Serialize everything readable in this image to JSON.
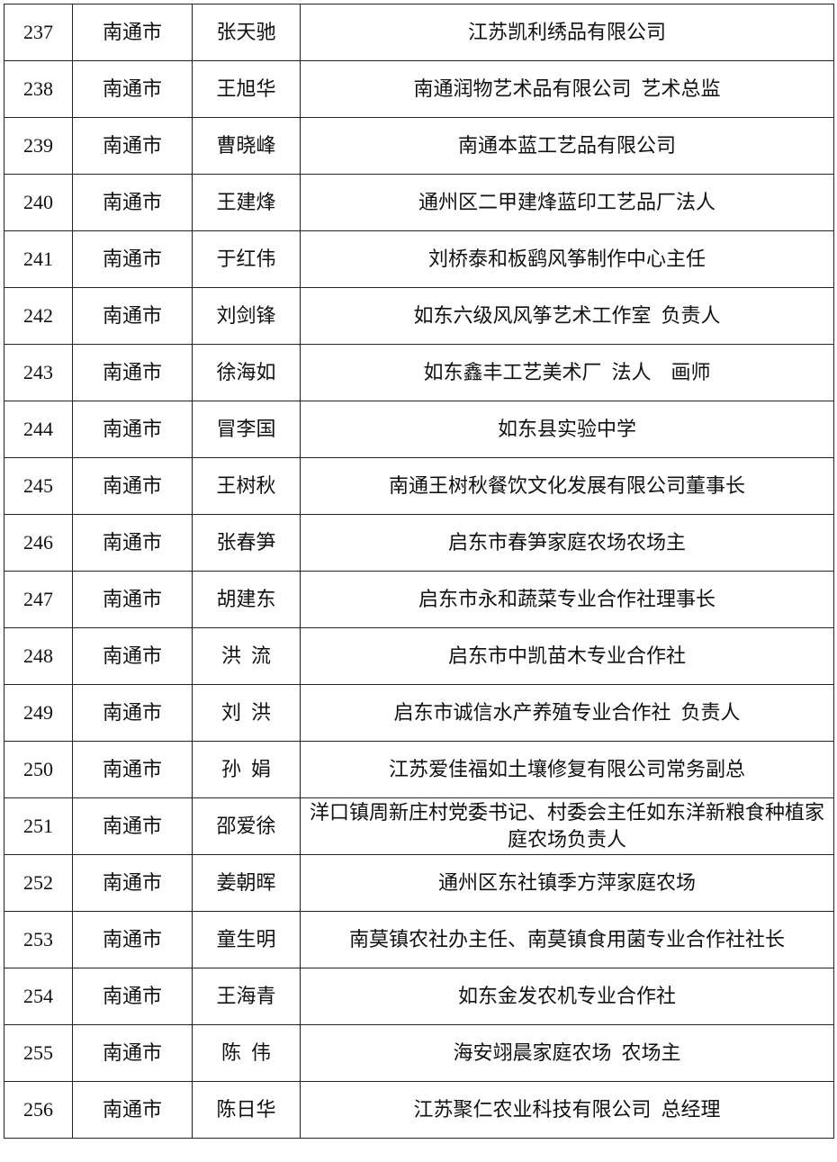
{
  "rows": [
    {
      "no": "237",
      "city": "南通市",
      "name": "张天驰",
      "unit": "江苏凯利绣品有限公司"
    },
    {
      "no": "238",
      "city": "南通市",
      "name": "王旭华",
      "unit": "南通润物艺术品有限公司  艺术总监"
    },
    {
      "no": "239",
      "city": "南通市",
      "name": "曹晓峰",
      "unit": "南通本蓝工艺品有限公司"
    },
    {
      "no": "240",
      "city": "南通市",
      "name": "王建烽",
      "unit": "通州区二甲建烽蓝印工艺品厂法人"
    },
    {
      "no": "241",
      "city": "南通市",
      "name": "于红伟",
      "unit": "刘桥泰和板鹞风筝制作中心主任"
    },
    {
      "no": "242",
      "city": "南通市",
      "name": "刘剑锋",
      "unit": "如东六级风风筝艺术工作室  负责人"
    },
    {
      "no": "243",
      "city": "南通市",
      "name": "徐海如",
      "unit": "如东鑫丰工艺美术厂  法人    画师"
    },
    {
      "no": "244",
      "city": "南通市",
      "name": "冒李国",
      "unit": "如东县实验中学"
    },
    {
      "no": "245",
      "city": "南通市",
      "name": "王树秋",
      "unit": "南通王树秋餐饮文化发展有限公司董事长"
    },
    {
      "no": "246",
      "city": "南通市",
      "name": "张春笋",
      "unit": "启东市春笋家庭农场农场主"
    },
    {
      "no": "247",
      "city": "南通市",
      "name": "胡建东",
      "unit": "启东市永和蔬菜专业合作社理事长"
    },
    {
      "no": "248",
      "city": "南通市",
      "name": "洪  流",
      "unit": "启东市中凯苗木专业合作社"
    },
    {
      "no": "249",
      "city": "南通市",
      "name": "刘  洪",
      "unit": "启东市诚信水产养殖专业合作社  负责人"
    },
    {
      "no": "250",
      "city": "南通市",
      "name": "孙  娟",
      "unit": "江苏爱佳福如土壤修复有限公司常务副总"
    },
    {
      "no": "251",
      "city": "南通市",
      "name": "邵爱徐",
      "unit": "洋口镇周新庄村党委书记、村委会主任如东洋新粮食种植家庭农场负责人"
    },
    {
      "no": "252",
      "city": "南通市",
      "name": "姜朝晖",
      "unit": "通州区东社镇季方萍家庭农场"
    },
    {
      "no": "253",
      "city": "南通市",
      "name": "童生明",
      "unit": "南莫镇农社办主任、南莫镇食用菌专业合作社社长"
    },
    {
      "no": "254",
      "city": "南通市",
      "name": "王海青",
      "unit": "如东金发农机专业合作社"
    },
    {
      "no": "255",
      "city": "南通市",
      "name": "陈  伟",
      "unit": "海安翊晨家庭农场  农场主"
    },
    {
      "no": "256",
      "city": "南通市",
      "name": "陈日华",
      "unit": "江苏聚仁农业科技有限公司  总经理"
    }
  ]
}
